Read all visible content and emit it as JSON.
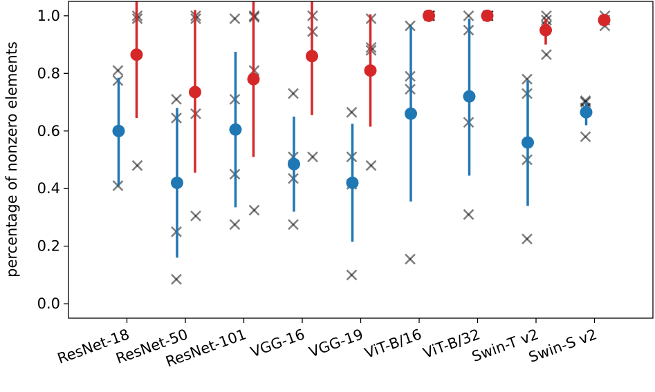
{
  "chart_data": {
    "type": "scatter",
    "title": "",
    "xlabel": "",
    "ylabel": "percentage of nonzero elements",
    "ylim": [
      -0.05,
      1.05
    ],
    "yticks": [
      0.0,
      0.2,
      0.4,
      0.6,
      0.8,
      1.0
    ],
    "ytick_labels": [
      "0.0",
      "0.2",
      "0.4",
      "0.6",
      "0.8",
      "1.0"
    ],
    "grid": false,
    "categories": [
      "ResNet-18",
      "ResNet-50",
      "ResNet-101",
      "VGG-16",
      "VGG-19",
      "ViT-B/16",
      "ViT-B/32",
      "Swin-T v2",
      "Swin-S v2"
    ],
    "colors": {
      "blue": "#1f77b4",
      "red": "#d62728",
      "cross": "#000000"
    },
    "series": [
      {
        "name": "blue",
        "mean": [
          0.6,
          0.42,
          0.605,
          0.485,
          0.42,
          0.66,
          0.72,
          0.56,
          0.665
        ],
        "err_low": [
          0.41,
          0.16,
          0.335,
          0.32,
          0.215,
          0.355,
          0.445,
          0.34,
          0.62
        ],
        "err_high": [
          0.785,
          0.68,
          0.875,
          0.65,
          0.625,
          0.965,
          0.99,
          0.775,
          0.7
        ],
        "crosses": [
          [
            0.81,
            0.775,
            0.41
          ],
          [
            0.71,
            0.645,
            0.25,
            0.085
          ],
          [
            0.99,
            0.71,
            0.45,
            0.275
          ],
          [
            0.73,
            0.51,
            0.435,
            0.275
          ],
          [
            0.665,
            0.51,
            0.415,
            0.1
          ],
          [
            0.965,
            0.79,
            0.745,
            0.155
          ],
          [
            1.0,
            0.95,
            0.63,
            0.31
          ],
          [
            0.78,
            0.73,
            0.5,
            0.225
          ],
          [
            0.705,
            0.68,
            0.58,
            0.7
          ]
        ]
      },
      {
        "name": "red",
        "mean": [
          0.865,
          0.735,
          0.78,
          0.86,
          0.81,
          1.0,
          1.0,
          0.95,
          0.985
        ],
        "err_low": [
          0.645,
          0.455,
          0.51,
          0.655,
          0.615,
          0.995,
          0.995,
          0.9,
          0.975
        ],
        "err_high": [
          1.05,
          1.02,
          1.05,
          1.05,
          1.005,
          1.005,
          1.005,
          0.99,
          0.995
        ],
        "crosses": [
          [
            1.0,
            0.99,
            0.48
          ],
          [
            1.0,
            0.99,
            0.66,
            0.305
          ],
          [
            1.0,
            0.995,
            0.81,
            0.325
          ],
          [
            1.0,
            0.945,
            0.51
          ],
          [
            0.99,
            0.89,
            0.88,
            0.48
          ],
          [
            1.0,
            1.0,
            1.0
          ],
          [
            1.0,
            1.0,
            1.0
          ],
          [
            1.0,
            0.985,
            0.965,
            0.865
          ],
          [
            1.0,
            0.985,
            0.965
          ]
        ]
      }
    ]
  }
}
